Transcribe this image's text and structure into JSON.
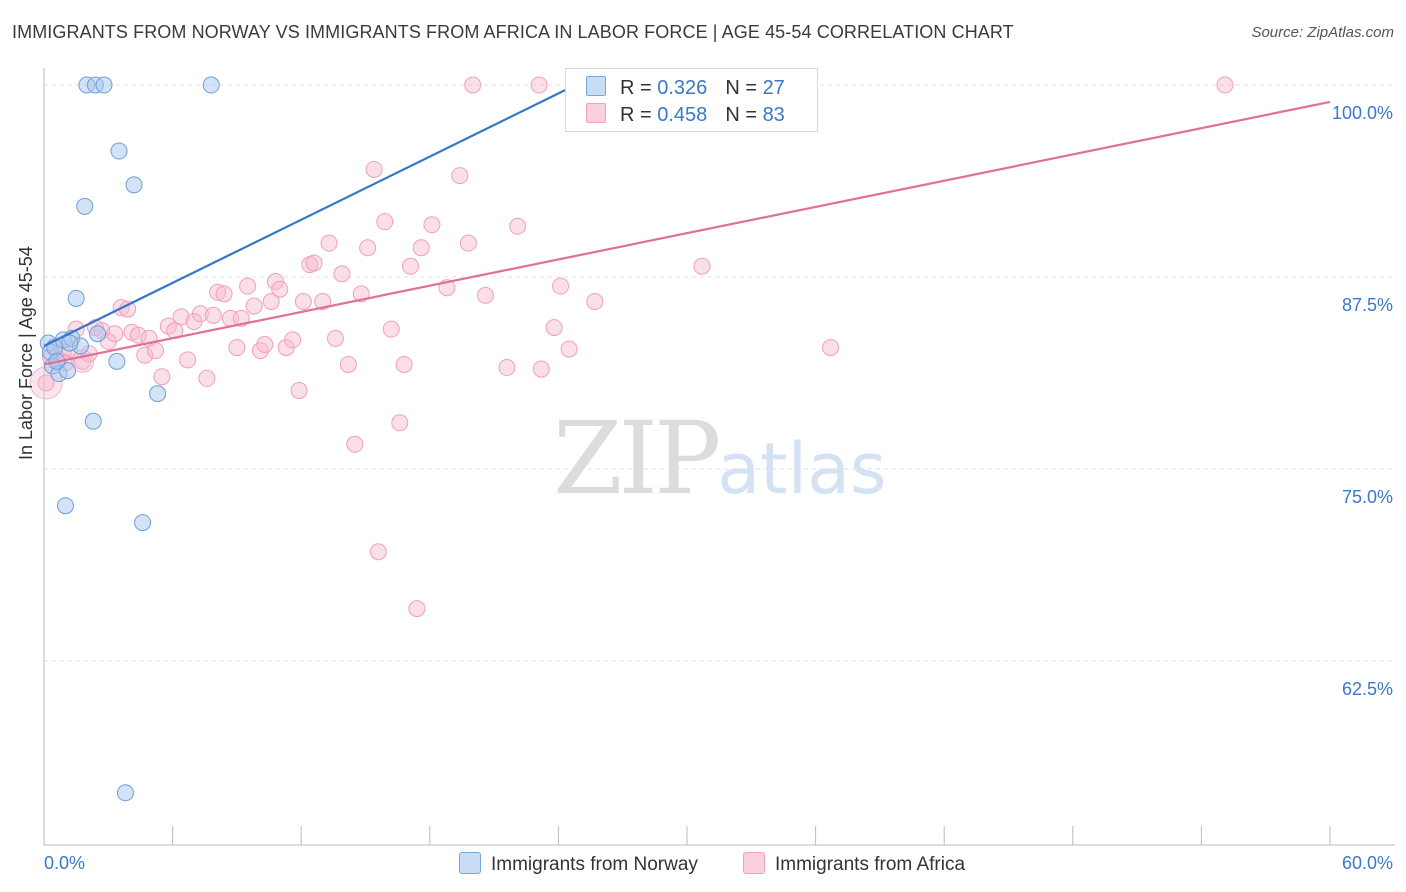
{
  "header": {
    "title": "IMMIGRANTS FROM NORWAY VS IMMIGRANTS FROM AFRICA IN LABOR FORCE | AGE 45-54 CORRELATION CHART",
    "source": "Source: ZipAtlas.com"
  },
  "watermark": {
    "zip": "ZIP",
    "atlas": "atlas"
  },
  "legend": {
    "norway": {
      "r_label": "R =",
      "r_value": "0.326",
      "n_label": "N =",
      "n_value": "27",
      "color": "#a8c8f0"
    },
    "africa": {
      "r_label": "R =",
      "r_value": "0.458",
      "n_label": "N =",
      "n_value": "83",
      "color": "#f7b8cc"
    }
  },
  "bottom_legend": {
    "norway": "Immigrants from Norway",
    "africa": "Immigrants from Africa"
  },
  "colors": {
    "norway_line": "#3377cc",
    "africa_line": "#e07099",
    "tick_text": "#3b78c8",
    "grid": "#e0e0e0"
  },
  "chart_data": {
    "type": "scatter",
    "title": "IMMIGRANTS FROM NORWAY VS IMMIGRANTS FROM AFRICA IN LABOR FORCE | AGE 45-54 CORRELATION CHART",
    "xlabel": "",
    "ylabel": "In Labor Force | Age 45-54",
    "xlim": [
      0,
      60
    ],
    "ylim": [
      50.5,
      101.5
    ],
    "x_tick_labels": [
      "0.0%",
      "60.0%"
    ],
    "y_ticks": [
      62.5,
      75.0,
      87.5,
      100.0
    ],
    "y_tick_labels": [
      "62.5%",
      "75.0%",
      "87.5%",
      "100.0%"
    ],
    "grid": true,
    "series": [
      {
        "name": "Immigrants from Norway",
        "trend": {
          "x": [
            0,
            24.8
          ],
          "y": [
            83.0,
            100.0
          ]
        },
        "points": [
          [
            0.2,
            83.2
          ],
          [
            0.3,
            82.6
          ],
          [
            0.4,
            81.7
          ],
          [
            0.5,
            82.9
          ],
          [
            0.7,
            81.2
          ],
          [
            0.9,
            83.4
          ],
          [
            1.0,
            72.6
          ],
          [
            1.1,
            81.4
          ],
          [
            1.3,
            83.5
          ],
          [
            1.5,
            86.1
          ],
          [
            1.7,
            83.0
          ],
          [
            1.9,
            92.1
          ],
          [
            2.0,
            100.0
          ],
          [
            2.3,
            78.1
          ],
          [
            2.4,
            100.0
          ],
          [
            2.5,
            83.8
          ],
          [
            2.8,
            100.0
          ],
          [
            3.4,
            82.0
          ],
          [
            3.5,
            95.7
          ],
          [
            3.8,
            53.9
          ],
          [
            4.2,
            93.5
          ],
          [
            4.6,
            71.5
          ],
          [
            5.3,
            79.9
          ],
          [
            7.8,
            100.0
          ],
          [
            25.5,
            100.0
          ],
          [
            0.6,
            82.0
          ],
          [
            1.2,
            83.2
          ]
        ]
      },
      {
        "name": "Immigrants from Africa",
        "trend": {
          "x": [
            0,
            60
          ],
          "y": [
            81.8,
            98.9
          ]
        },
        "points": [
          [
            0.1,
            80.6
          ],
          [
            0.3,
            82.3
          ],
          [
            0.5,
            83.0
          ],
          [
            0.7,
            82.1
          ],
          [
            0.9,
            82.6
          ],
          [
            1.2,
            82.8
          ],
          [
            1.5,
            84.1
          ],
          [
            1.8,
            82.0
          ],
          [
            2.1,
            82.5
          ],
          [
            2.4,
            84.2
          ],
          [
            2.7,
            84.0
          ],
          [
            3.0,
            83.3
          ],
          [
            3.3,
            83.8
          ],
          [
            3.6,
            85.5
          ],
          [
            3.9,
            85.4
          ],
          [
            4.1,
            83.9
          ],
          [
            4.4,
            83.7
          ],
          [
            4.7,
            82.4
          ],
          [
            4.9,
            83.5
          ],
          [
            5.2,
            82.7
          ],
          [
            5.5,
            81.0
          ],
          [
            5.8,
            84.3
          ],
          [
            6.1,
            84.0
          ],
          [
            6.4,
            84.9
          ],
          [
            6.7,
            82.1
          ],
          [
            7.0,
            84.6
          ],
          [
            7.3,
            85.1
          ],
          [
            7.6,
            80.9
          ],
          [
            7.9,
            85.0
          ],
          [
            8.1,
            86.5
          ],
          [
            8.4,
            86.4
          ],
          [
            8.7,
            84.8
          ],
          [
            9.0,
            82.9
          ],
          [
            9.2,
            84.8
          ],
          [
            9.5,
            86.9
          ],
          [
            9.8,
            85.6
          ],
          [
            10.1,
            82.7
          ],
          [
            10.3,
            83.1
          ],
          [
            10.6,
            85.9
          ],
          [
            10.8,
            87.2
          ],
          [
            11.0,
            86.7
          ],
          [
            11.3,
            82.9
          ],
          [
            11.6,
            83.4
          ],
          [
            11.9,
            80.1
          ],
          [
            12.1,
            85.9
          ],
          [
            12.4,
            88.3
          ],
          [
            12.6,
            88.4
          ],
          [
            13.0,
            85.9
          ],
          [
            13.3,
            89.7
          ],
          [
            13.6,
            83.5
          ],
          [
            13.9,
            87.7
          ],
          [
            14.2,
            81.8
          ],
          [
            14.5,
            76.6
          ],
          [
            14.8,
            86.4
          ],
          [
            15.1,
            89.4
          ],
          [
            15.4,
            94.5
          ],
          [
            15.6,
            69.6
          ],
          [
            15.9,
            91.1
          ],
          [
            16.2,
            84.1
          ],
          [
            16.6,
            78.0
          ],
          [
            16.8,
            81.8
          ],
          [
            17.1,
            88.2
          ],
          [
            17.4,
            65.9
          ],
          [
            17.6,
            89.4
          ],
          [
            18.1,
            90.9
          ],
          [
            18.8,
            86.8
          ],
          [
            19.4,
            94.1
          ],
          [
            19.8,
            89.7
          ],
          [
            20.0,
            100.0
          ],
          [
            20.6,
            86.3
          ],
          [
            21.6,
            81.6
          ],
          [
            22.1,
            90.8
          ],
          [
            23.1,
            100.0
          ],
          [
            23.2,
            81.5
          ],
          [
            23.8,
            84.2
          ],
          [
            24.1,
            86.9
          ],
          [
            24.5,
            82.8
          ],
          [
            25.7,
            85.9
          ],
          [
            30.7,
            88.2
          ],
          [
            36.7,
            82.9
          ],
          [
            55.1,
            100.0
          ],
          [
            33.8,
            100.0
          ],
          [
            1.0,
            81.9
          ]
        ]
      }
    ]
  }
}
